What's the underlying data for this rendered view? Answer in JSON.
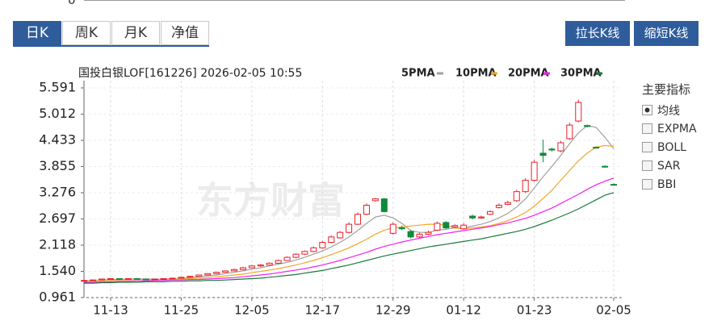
{
  "top_fragment": "0",
  "tabs": [
    "日K",
    "周K",
    "月K",
    "净值"
  ],
  "active_tab": 0,
  "buttons": [
    "拉长K线",
    "缩短K线"
  ],
  "indicator_panel": {
    "title": "主要指标",
    "items": [
      "均线",
      "EXPMA",
      "BOLL",
      "SAR",
      "BBI"
    ],
    "checked": [
      true,
      false,
      false,
      false,
      false
    ]
  },
  "chart_data": {
    "type": "candlestick",
    "title": "国投白银LOF[161226] 2026-02-05 10:55",
    "watermark": "东方财富",
    "categories": [
      null,
      null,
      null,
      "11-13",
      null,
      null,
      null,
      null,
      null,
      null,
      null,
      "11-25",
      null,
      null,
      null,
      null,
      null,
      null,
      null,
      "12-05",
      null,
      null,
      null,
      null,
      null,
      null,
      null,
      "12-17",
      null,
      null,
      null,
      null,
      null,
      null,
      null,
      "12-29",
      null,
      null,
      null,
      null,
      null,
      null,
      null,
      "01-12",
      null,
      null,
      null,
      null,
      null,
      null,
      null,
      "01-23",
      null,
      null,
      null,
      null,
      null,
      null,
      null,
      null,
      "02-05"
    ],
    "candles": {
      "up_color": "#e8212b",
      "down_color": "#0d8a3a",
      "open": [
        1.33,
        1.34,
        1.35,
        1.37,
        1.38,
        1.37,
        1.38,
        1.37,
        1.36,
        1.37,
        1.38,
        1.39,
        1.41,
        1.43,
        1.46,
        1.49,
        1.52,
        1.55,
        1.58,
        1.62,
        1.66,
        1.68,
        1.72,
        1.78,
        1.85,
        1.92,
        1.98,
        2.06,
        2.18,
        2.28,
        2.4,
        2.58,
        2.8,
        3.1,
        3.14,
        2.38,
        2.5,
        2.42,
        2.3,
        2.36,
        2.45,
        2.62,
        2.52,
        2.48,
        2.76,
        2.72,
        2.8,
        2.95,
        3.02,
        3.1,
        3.3,
        3.55,
        4.15,
        4.24,
        4.2,
        4.47,
        4.86,
        4.76,
        4.28,
        3.86,
        3.46
      ],
      "high": [
        1.35,
        1.36,
        1.38,
        1.39,
        1.39,
        1.39,
        1.39,
        1.38,
        1.38,
        1.39,
        1.4,
        1.42,
        1.44,
        1.47,
        1.5,
        1.53,
        1.56,
        1.6,
        1.64,
        1.68,
        1.7,
        1.74,
        1.8,
        1.87,
        1.94,
        2.0,
        2.09,
        2.21,
        2.33,
        2.43,
        2.62,
        2.84,
        3.04,
        3.16,
        3.16,
        2.62,
        2.55,
        2.45,
        2.39,
        2.44,
        2.64,
        2.65,
        2.58,
        2.6,
        2.79,
        2.77,
        2.89,
        3.04,
        3.1,
        3.34,
        3.6,
        4.0,
        4.45,
        4.27,
        4.42,
        4.82,
        5.33,
        4.78,
        4.3,
        3.88,
        3.48
      ],
      "low": [
        1.32,
        1.33,
        1.34,
        1.36,
        1.36,
        1.36,
        1.36,
        1.35,
        1.35,
        1.36,
        1.37,
        1.38,
        1.4,
        1.42,
        1.45,
        1.48,
        1.51,
        1.54,
        1.57,
        1.61,
        1.64,
        1.67,
        1.71,
        1.77,
        1.83,
        1.9,
        1.96,
        2.04,
        2.16,
        2.26,
        2.38,
        2.56,
        2.78,
        3.08,
        2.84,
        2.35,
        2.45,
        2.27,
        2.28,
        2.34,
        2.43,
        2.47,
        2.5,
        2.46,
        2.69,
        2.7,
        2.78,
        2.93,
        3.0,
        3.07,
        3.27,
        3.52,
        3.95,
        4.19,
        4.17,
        4.44,
        4.83,
        4.72,
        4.25,
        3.83,
        3.43
      ],
      "close": [
        1.34,
        1.35,
        1.37,
        1.38,
        1.37,
        1.38,
        1.37,
        1.36,
        1.37,
        1.38,
        1.39,
        1.41,
        1.43,
        1.46,
        1.49,
        1.52,
        1.55,
        1.58,
        1.62,
        1.66,
        1.68,
        1.72,
        1.78,
        1.85,
        1.92,
        1.98,
        2.06,
        2.18,
        2.3,
        2.4,
        2.58,
        2.8,
        3.0,
        3.14,
        2.86,
        2.58,
        2.48,
        2.3,
        2.36,
        2.4,
        2.6,
        2.5,
        2.55,
        2.56,
        2.72,
        2.74,
        2.86,
        3.0,
        3.06,
        3.3,
        3.55,
        3.95,
        4.1,
        4.22,
        4.38,
        4.77,
        5.27,
        4.74,
        4.27,
        3.85,
        3.45
      ]
    },
    "series": [
      {
        "name": "5PMA",
        "color": "#a0a0a0",
        "values": [
          1.33,
          1.34,
          1.35,
          1.36,
          1.36,
          1.37,
          1.37,
          1.37,
          1.37,
          1.37,
          1.37,
          1.38,
          1.4,
          1.42,
          1.44,
          1.46,
          1.49,
          1.52,
          1.55,
          1.59,
          1.62,
          1.66,
          1.7,
          1.74,
          1.79,
          1.85,
          1.92,
          1.99,
          2.08,
          2.18,
          2.3,
          2.44,
          2.6,
          2.74,
          2.78,
          2.72,
          2.6,
          2.44,
          2.4,
          2.4,
          2.45,
          2.47,
          2.5,
          2.5,
          2.54,
          2.58,
          2.64,
          2.72,
          2.82,
          2.96,
          3.14,
          3.38,
          3.63,
          3.86,
          4.1,
          4.36,
          4.6,
          4.76,
          4.72,
          4.5,
          4.25
        ]
      },
      {
        "name": "10PMA",
        "color": "#f5a623",
        "values": [
          1.32,
          1.33,
          1.34,
          1.34,
          1.35,
          1.35,
          1.36,
          1.36,
          1.36,
          1.37,
          1.37,
          1.37,
          1.38,
          1.39,
          1.4,
          1.42,
          1.44,
          1.46,
          1.48,
          1.51,
          1.54,
          1.57,
          1.6,
          1.64,
          1.68,
          1.73,
          1.78,
          1.84,
          1.91,
          1.98,
          2.06,
          2.15,
          2.25,
          2.36,
          2.45,
          2.5,
          2.52,
          2.54,
          2.56,
          2.58,
          2.58,
          2.56,
          2.5,
          2.48,
          2.5,
          2.52,
          2.55,
          2.6,
          2.66,
          2.74,
          2.84,
          2.98,
          3.15,
          3.33,
          3.55,
          3.77,
          3.98,
          4.15,
          4.28,
          4.32,
          4.3
        ]
      },
      {
        "name": "20PMA",
        "color": "#f020f0",
        "values": [
          1.3,
          1.3,
          1.31,
          1.31,
          1.32,
          1.32,
          1.33,
          1.33,
          1.34,
          1.34,
          1.35,
          1.35,
          1.36,
          1.36,
          1.37,
          1.38,
          1.39,
          1.4,
          1.42,
          1.44,
          1.46,
          1.48,
          1.51,
          1.54,
          1.57,
          1.6,
          1.64,
          1.68,
          1.73,
          1.78,
          1.84,
          1.9,
          1.96,
          2.03,
          2.09,
          2.14,
          2.19,
          2.23,
          2.27,
          2.31,
          2.35,
          2.38,
          2.41,
          2.44,
          2.47,
          2.5,
          2.53,
          2.57,
          2.61,
          2.66,
          2.71,
          2.78,
          2.86,
          2.94,
          3.04,
          3.14,
          3.24,
          3.35,
          3.45,
          3.53,
          3.6
        ]
      },
      {
        "name": "30PMA",
        "color": "#1a7a3a",
        "values": [
          1.28,
          1.28,
          1.29,
          1.29,
          1.3,
          1.3,
          1.3,
          1.31,
          1.31,
          1.31,
          1.32,
          1.32,
          1.33,
          1.33,
          1.34,
          1.34,
          1.35,
          1.36,
          1.37,
          1.38,
          1.39,
          1.41,
          1.43,
          1.45,
          1.47,
          1.5,
          1.53,
          1.56,
          1.6,
          1.64,
          1.68,
          1.73,
          1.78,
          1.83,
          1.88,
          1.92,
          1.96,
          2.0,
          2.04,
          2.08,
          2.11,
          2.14,
          2.17,
          2.2,
          2.23,
          2.26,
          2.3,
          2.34,
          2.38,
          2.42,
          2.47,
          2.53,
          2.6,
          2.67,
          2.75,
          2.83,
          2.92,
          3.02,
          3.12,
          3.22,
          3.28
        ]
      }
    ],
    "ylim": [
      0.961,
      5.591
    ],
    "yticks": [
      0.961,
      {
        "value": 1.54,
        "label": "1.540"
      },
      2.118,
      2.697,
      3.276,
      3.855,
      4.433,
      5.012,
      5.591
    ],
    "grid": true
  }
}
